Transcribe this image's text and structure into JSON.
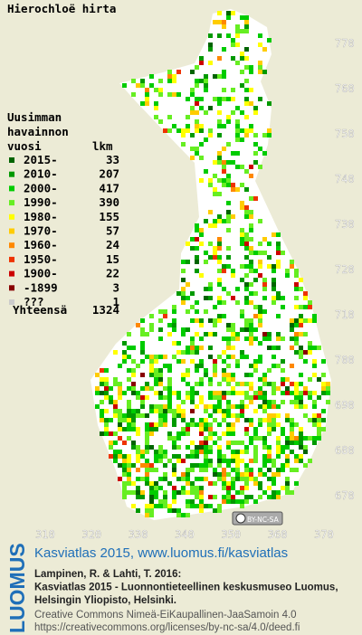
{
  "title": "Hierochloë hirta",
  "legend": {
    "header": [
      "Uusimman",
      "havainnon",
      "vuosi"
    ],
    "count_header": "lkm",
    "rows": [
      {
        "label": "2015-",
        "count": 33,
        "color": "#006400"
      },
      {
        "label": "2010-",
        "count": 207,
        "color": "#009900"
      },
      {
        "label": "2000-",
        "count": 417,
        "color": "#00cc00"
      },
      {
        "label": "1990-",
        "count": 390,
        "color": "#66ee22"
      },
      {
        "label": "1980-",
        "count": 155,
        "color": "#ffff00"
      },
      {
        "label": "1970-",
        "count": 57,
        "color": "#ffcc00"
      },
      {
        "label": "1960-",
        "count": 24,
        "color": "#ff8800"
      },
      {
        "label": "1950-",
        "count": 15,
        "color": "#ee3300"
      },
      {
        "label": "1900-",
        "count": 22,
        "color": "#cc0000"
      },
      {
        "label": "-1899",
        "count": 3,
        "color": "#880000"
      },
      {
        "label": "???",
        "count": 1,
        "color": "#cccccc"
      }
    ],
    "total_label": "Yhteensä",
    "total": 1324
  },
  "map": {
    "xticks": [
      310,
      320,
      330,
      340,
      350,
      360,
      370
    ],
    "yticks": [
      770,
      760,
      750,
      740,
      730,
      720,
      710,
      700,
      690,
      680,
      670
    ]
  },
  "cc_badge": "BY-NC-SA",
  "footer": {
    "logo": "LUOMUS",
    "link": "Kasviatlas 2015, www.luomus.fi/kasviatlas",
    "citation": [
      "Lampinen, R. & Lahti, T. 2016:",
      "Kasviatlas 2015 - Luonnontieteellinen keskusmuseo Luomus,",
      "Helsingin Yliopisto, Helsinki."
    ],
    "license": [
      "Creative Commons Nimeä-EiKaupallinen-JaaSamoin 4.0",
      "https://creativecommons.org/licenses/by-nc-sa/4.0/deed.fi"
    ]
  }
}
